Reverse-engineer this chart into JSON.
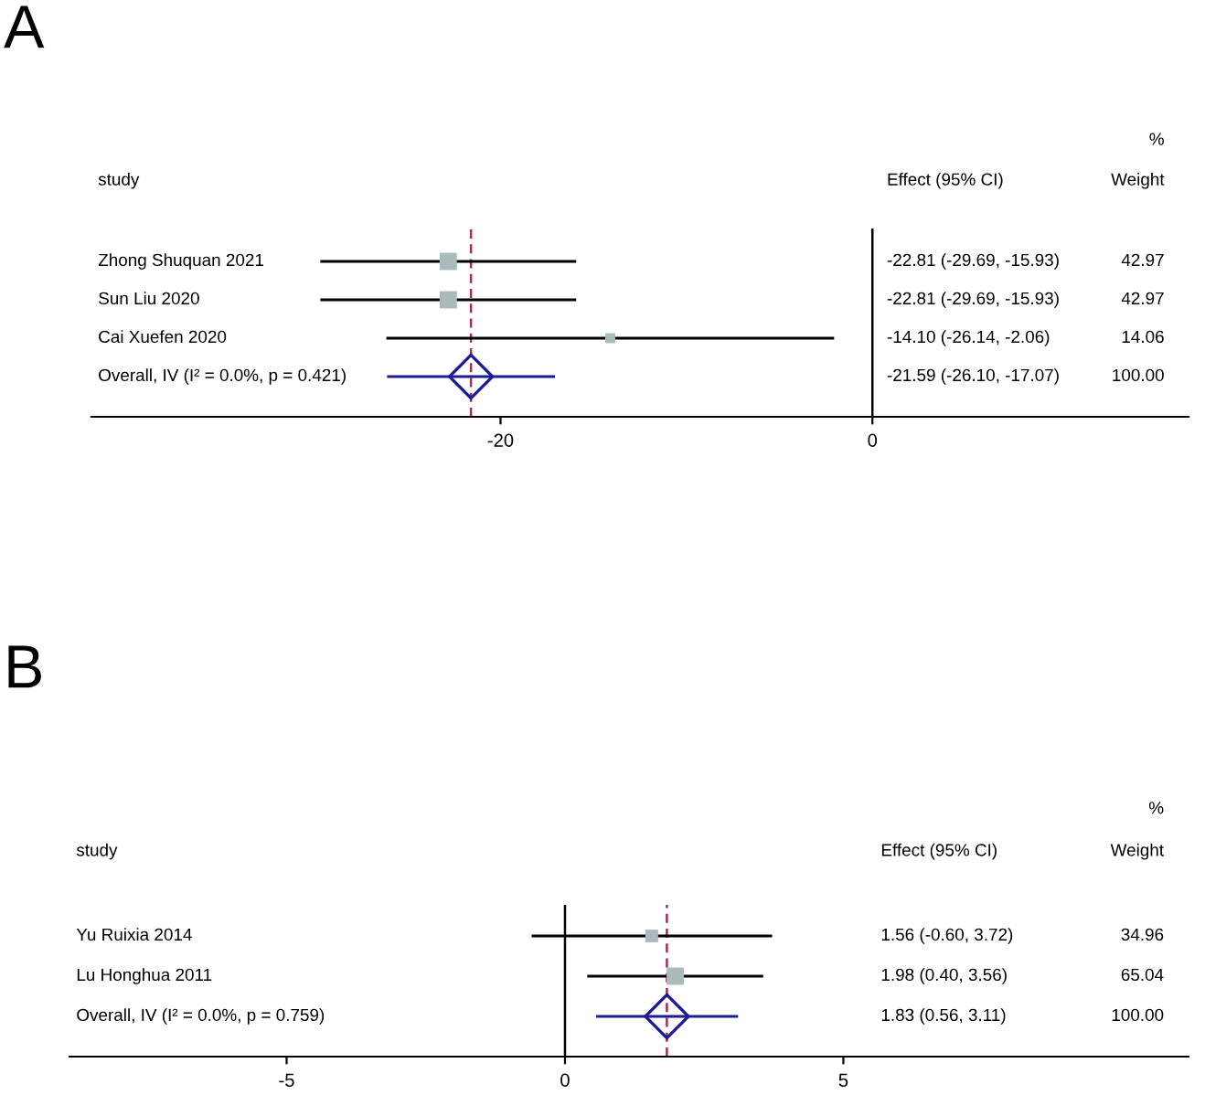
{
  "chart_data": [
    {
      "type": "scatter",
      "orientation": "horizontal",
      "title": "A",
      "annotations": [
        "study",
        "Effect (95% CI)",
        "Weight",
        "%",
        "-22.81 (-29.69, -15.93)",
        "42.97",
        "-22.81 (-29.69, -15.93)",
        "42.97",
        "-14.10 (-26.14, -2.06)",
        "14.06",
        "-21.59 (-26.10, -17.07)",
        "100.00"
      ],
      "categories": [
        "Zhong Shuquan 2021",
        "Sun Liu 2020",
        "Cai Xuefen 2020",
        "Overall, IV (I² = 0.0%, p = 0.421)"
      ],
      "series": [
        {
          "marker": "square",
          "color": "#a9bbbb",
          "values": [
            -22.81,
            -22.81,
            -14.1,
            null
          ],
          "errors": [
            [
              -29.69,
              -15.93
            ],
            [
              -29.69,
              -15.93
            ],
            [
              -26.14,
              -2.06
            ],
            null
          ],
          "sizes": [
            1,
            1,
            0.33,
            null
          ]
        },
        {
          "marker": "diamond",
          "color": "#1c1c96",
          "values": [
            null,
            null,
            null,
            -21.59
          ],
          "errors": [
            null,
            null,
            null,
            [
              -26.1,
              -17.07
            ]
          ]
        }
      ],
      "xlim": [
        -42,
        17
      ],
      "xticks": [
        -20,
        0
      ],
      "ref_lines": [
        {
          "axis": "x",
          "value": 0,
          "color": "#000000",
          "line_style": "solid"
        },
        {
          "axis": "x",
          "value": -21.59,
          "color": "#a03050",
          "line_style": "dashed"
        }
      ],
      "grid": false,
      "legend": false
    },
    {
      "type": "scatter",
      "orientation": "horizontal",
      "title": "B",
      "annotations": [
        "study",
        "Effect (95% CI)",
        "Weight",
        "%",
        "1.56 (-0.60, 3.72)",
        "34.96",
        "1.98 (0.40, 3.56)",
        "65.04",
        "1.83 (0.56, 3.11)",
        "100.00"
      ],
      "categories": [
        "Yu Ruixia 2014",
        "Lu Honghua 2011",
        "Overall, IV (I² = 0.0%, p = 0.759)"
      ],
      "series": [
        {
          "marker": "square",
          "color": "#a9bbbb",
          "values": [
            1.56,
            1.98,
            null
          ],
          "errors": [
            [
              -0.6,
              3.72
            ],
            [
              0.4,
              3.56
            ],
            null
          ],
          "sizes": [
            0.54,
            1,
            null
          ]
        },
        {
          "marker": "diamond",
          "color": "#1c1c96",
          "values": [
            null,
            null,
            1.83
          ],
          "errors": [
            null,
            null,
            [
              0.56,
              3.11
            ]
          ]
        }
      ],
      "xlim": [
        -8.9,
        11.2
      ],
      "xticks": [
        -5,
        0,
        5
      ],
      "ref_lines": [
        {
          "axis": "x",
          "value": 0,
          "color": "#000000",
          "line_style": "solid"
        },
        {
          "axis": "x",
          "value": 1.83,
          "color": "#a03050",
          "line_style": "dashed"
        }
      ],
      "grid": false,
      "legend": false
    }
  ]
}
